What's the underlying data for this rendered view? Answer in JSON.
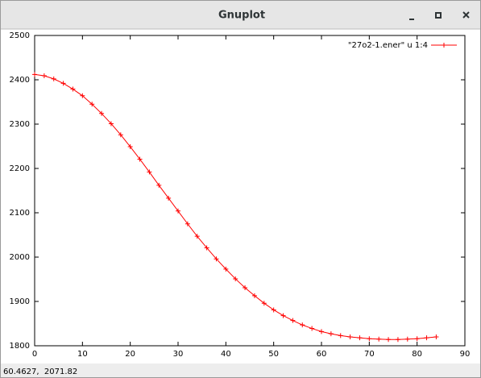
{
  "window": {
    "title": "Gnuplot",
    "status": "60.4627,  2071.82"
  },
  "chart_data": {
    "type": "line",
    "x": [
      0,
      2,
      4,
      6,
      8,
      10,
      12,
      14,
      16,
      18,
      20,
      22,
      24,
      26,
      28,
      30,
      32,
      34,
      36,
      38,
      40,
      42,
      44,
      46,
      48,
      50,
      52,
      54,
      56,
      58,
      60,
      62,
      64,
      66,
      68,
      70,
      72,
      74,
      76,
      78,
      80,
      82,
      84
    ],
    "series": [
      {
        "name": "\"27o2-1.ener\" u 1:4",
        "color": "#ff0000",
        "values": [
          2412,
          2409,
          2402,
          2392,
          2379,
          2364,
          2345,
          2324,
          2301,
          2276,
          2249,
          2221,
          2192,
          2162,
          2133,
          2104,
          2075,
          2047,
          2021,
          1996,
          1973,
          1951,
          1931,
          1913,
          1896,
          1881,
          1868,
          1857,
          1847,
          1839,
          1832,
          1827,
          1823,
          1820,
          1818,
          1816,
          1815,
          1814,
          1814,
          1815,
          1816,
          1818,
          1820
        ]
      }
    ],
    "xlim": [
      0,
      90
    ],
    "xticks": [
      0,
      10,
      20,
      30,
      40,
      50,
      60,
      70,
      80,
      90
    ],
    "ylim": [
      1800,
      2500
    ],
    "yticks": [
      1800,
      1900,
      2000,
      2100,
      2200,
      2300,
      2400,
      2500
    ],
    "legend": "upper right",
    "markers": "plus"
  }
}
